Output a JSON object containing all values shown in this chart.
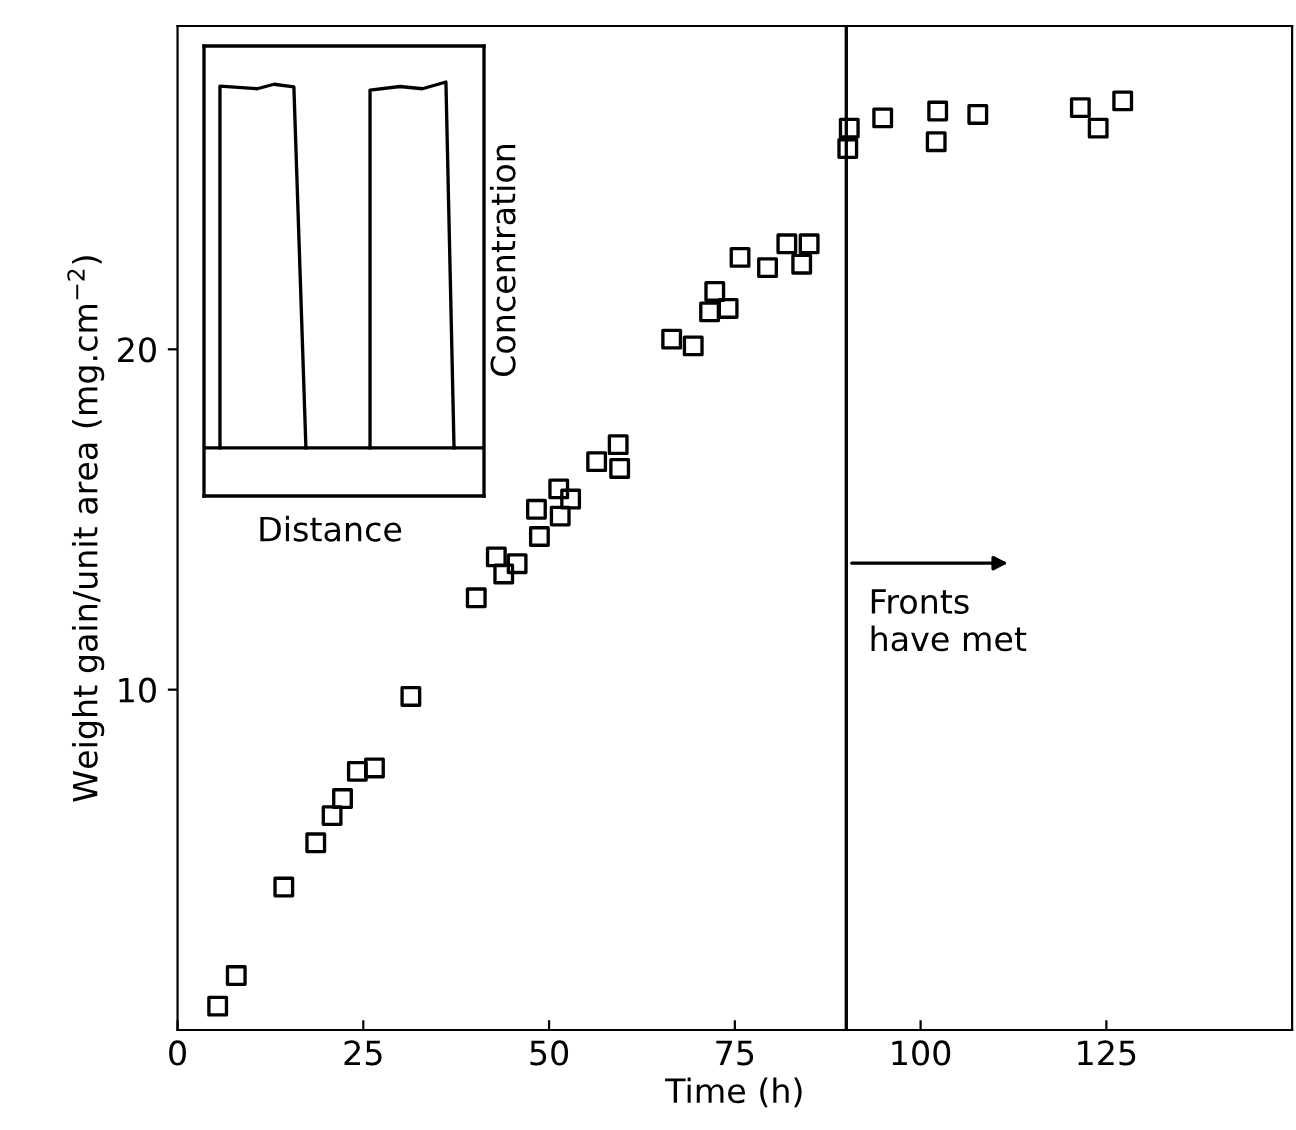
{
  "chart_data": {
    "type": "scatter",
    "xlabel": "Time (h)",
    "ylabel": "Weight gain/unit area (mg.cm$^{−2}$)",
    "x": [
      5.4,
      7.9,
      14.3,
      18.6,
      20.8,
      22.2,
      24.2,
      26.5,
      31.4,
      40.2,
      42.9,
      43.9,
      45.7,
      48.7,
      48.3,
      51.5,
      51.3,
      52.9,
      56.4,
      59.3,
      59.5,
      66.5,
      69.4,
      71.6,
      72.3,
      74.1,
      75.7,
      79.4,
      82.0,
      84.0,
      85.0,
      90.4,
      90.2,
      94.9,
      102.3,
      102.1,
      107.7,
      121.5,
      123.9,
      127.2
    ],
    "values": [
      0.7,
      1.6,
      4.2,
      5.5,
      6.3,
      6.8,
      7.6,
      7.7,
      9.8,
      12.7,
      13.9,
      13.4,
      13.7,
      14.5,
      15.3,
      15.1,
      15.9,
      15.6,
      16.7,
      17.2,
      16.5,
      20.3,
      20.1,
      21.1,
      21.7,
      21.2,
      22.7,
      22.4,
      23.1,
      22.5,
      23.1,
      26.5,
      25.9,
      26.8,
      27.0,
      26.1,
      26.9,
      27.1,
      26.5,
      27.3
    ],
    "color": "#000000",
    "marker": "square",
    "grid": false,
    "xlim": [
      0,
      150
    ],
    "xticks": [
      0,
      25,
      50,
      75,
      100,
      125
    ],
    "ylim": [
      0,
      29.5
    ],
    "yticks": [
      10,
      20
    ],
    "ref_lines": [
      {
        "axis": "x",
        "value": 90,
        "label": "Fronts\nhave met",
        "color": "#000000"
      }
    ],
    "annotations": [
      "Distance",
      "Concentration"
    ]
  }
}
